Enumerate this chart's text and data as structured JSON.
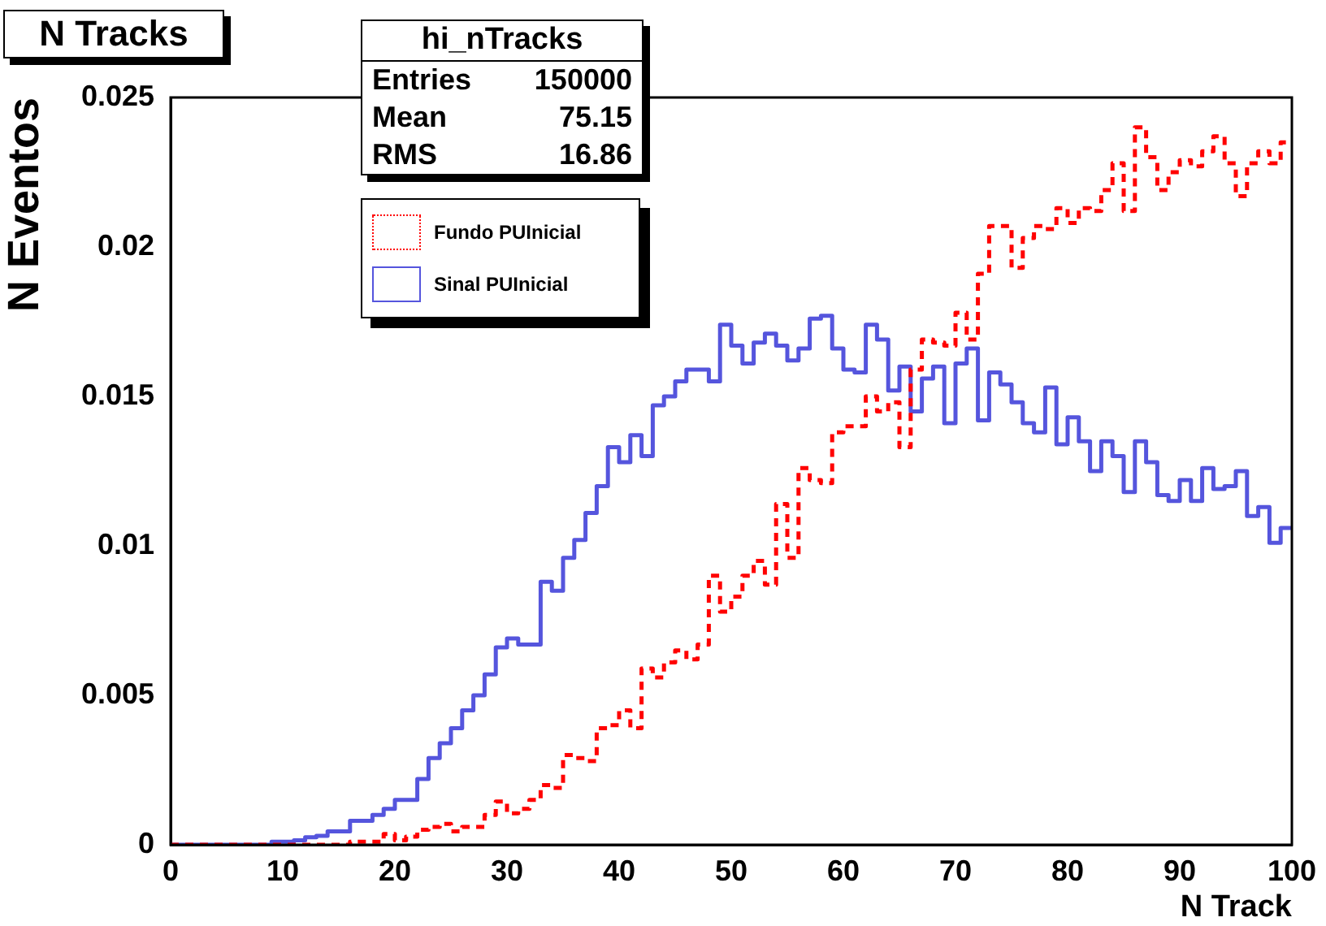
{
  "chart_data": {
    "type": "histogram",
    "title": "N Tracks",
    "xlabel": "N Track",
    "ylabel": "N Eventos",
    "bins": [
      0,
      1,
      2,
      3,
      4,
      5,
      6,
      7,
      8,
      9,
      10,
      11,
      12,
      13,
      14,
      15,
      16,
      17,
      18,
      19,
      20,
      21,
      22,
      23,
      24,
      25,
      26,
      27,
      28,
      29,
      30,
      31,
      32,
      33,
      34,
      35,
      36,
      37,
      38,
      39,
      40,
      41,
      42,
      43,
      44,
      45,
      46,
      47,
      48,
      49,
      50,
      51,
      52,
      53,
      54,
      55,
      56,
      57,
      58,
      59,
      60,
      61,
      62,
      63,
      64,
      65,
      66,
      67,
      68,
      69,
      70,
      71,
      72,
      73,
      74,
      75,
      76,
      77,
      78,
      79,
      80,
      81,
      82,
      83,
      84,
      85,
      86,
      87,
      88,
      89,
      90,
      91,
      92,
      93,
      94,
      95,
      96,
      97,
      98,
      99,
      100
    ],
    "series": [
      {
        "name": "Fundo PUInicial",
        "color": "#ff0000",
        "line_style": "dashed",
        "values": [
          0,
          0,
          0,
          0,
          0,
          0,
          0,
          0,
          0,
          0,
          0,
          0,
          0,
          0,
          0,
          0,
          0.0001,
          0.0001,
          0.0001,
          0.00036,
          0.00015,
          0.00027,
          0.0005,
          0.0006,
          0.0007,
          0.00045,
          0.0006,
          0.0006,
          0.001,
          0.00145,
          0.00105,
          0.0012,
          0.0015,
          0.002,
          0.0019,
          0.003,
          0.0029,
          0.0028,
          0.0039,
          0.004,
          0.0045,
          0.0039,
          0.0059,
          0.0056,
          0.0061,
          0.0065,
          0.0062,
          0.0067,
          0.009,
          0.0078,
          0.0083,
          0.009,
          0.0095,
          0.0087,
          0.0114,
          0.0096,
          0.0126,
          0.0122,
          0.0121,
          0.0138,
          0.014,
          0.014,
          0.015,
          0.0145,
          0.0148,
          0.0133,
          0.0159,
          0.0169,
          0.0168,
          0.0167,
          0.0178,
          0.0169,
          0.0191,
          0.0207,
          0.0207,
          0.0193,
          0.0203,
          0.0207,
          0.0206,
          0.0213,
          0.0208,
          0.0213,
          0.0212,
          0.0219,
          0.0228,
          0.0212,
          0.024,
          0.023,
          0.0219,
          0.0225,
          0.0229,
          0.0227,
          0.0232,
          0.0237,
          0.0228,
          0.0217,
          0.0228,
          0.0232,
          0.0228,
          0.0235
        ]
      },
      {
        "name": "Sinal PUInicial",
        "color": "#5555dd",
        "line_style": "solid",
        "values": [
          0,
          0,
          0,
          0,
          0,
          0,
          0,
          0,
          0,
          0.0001,
          0.0001,
          0.00015,
          0.00025,
          0.0003,
          0.00045,
          0.00045,
          0.0008,
          0.0008,
          0.001,
          0.0012,
          0.0015,
          0.0015,
          0.0022,
          0.0029,
          0.0034,
          0.0039,
          0.0045,
          0.005,
          0.0057,
          0.0066,
          0.0069,
          0.0067,
          0.0067,
          0.0088,
          0.0085,
          0.0096,
          0.0102,
          0.0111,
          0.012,
          0.0133,
          0.0128,
          0.0137,
          0.013,
          0.0147,
          0.015,
          0.0155,
          0.0159,
          0.0159,
          0.0155,
          0.0174,
          0.0167,
          0.0161,
          0.0168,
          0.0171,
          0.0167,
          0.0162,
          0.0166,
          0.0176,
          0.0177,
          0.0166,
          0.0159,
          0.0158,
          0.0174,
          0.0169,
          0.0152,
          0.016,
          0.0145,
          0.0156,
          0.016,
          0.0141,
          0.0161,
          0.0166,
          0.0142,
          0.0158,
          0.0154,
          0.0148,
          0.0141,
          0.0138,
          0.0153,
          0.0134,
          0.0143,
          0.0135,
          0.0125,
          0.0135,
          0.013,
          0.0118,
          0.0135,
          0.0128,
          0.0117,
          0.0115,
          0.0122,
          0.0115,
          0.0126,
          0.0119,
          0.012,
          0.0125,
          0.011,
          0.0113,
          0.0101,
          0.0106
        ]
      }
    ],
    "xlim": [
      0,
      100
    ],
    "xticks": [
      0,
      10,
      20,
      30,
      40,
      50,
      60,
      70,
      80,
      90,
      100
    ],
    "ylim": [
      0,
      0.025
    ],
    "yticks": [
      0,
      0.005,
      0.01,
      0.015,
      0.02,
      0.025
    ],
    "legend": "top left",
    "marker": "none",
    "grid": false,
    "annotations": [
      "hi_nTracks",
      "Entries 150000",
      "Mean 75.15",
      "RMS 16.86"
    ]
  }
}
